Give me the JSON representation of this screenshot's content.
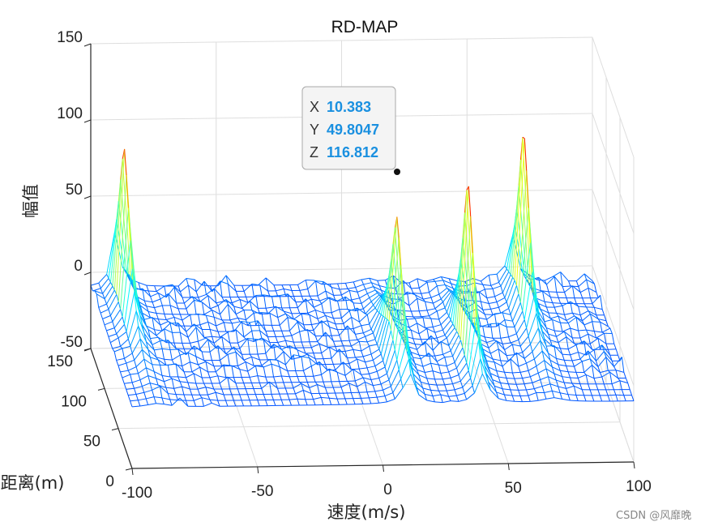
{
  "chart_data": {
    "type": "surface",
    "title": "RD-MAP",
    "xlabel": "速度(m/s)",
    "ylabel": "距离(m)",
    "zlabel": "幅值",
    "xlim": [
      -100,
      100
    ],
    "ylim": [
      0,
      150
    ],
    "zlim": [
      -50,
      150
    ],
    "x_ticks": [
      "-100",
      "-50",
      "0",
      "50",
      "100"
    ],
    "y_ticks": [
      "0",
      "50",
      "100",
      "150"
    ],
    "z_ticks": [
      "-50",
      "0",
      "50",
      "100",
      "150"
    ],
    "grid": true,
    "colormap": "jet",
    "noise_floor_z": -10,
    "peaks": [
      {
        "x": -90,
        "y": 115,
        "z": 115
      },
      {
        "x": 10.383,
        "y": 49.8047,
        "z": 116.812
      },
      {
        "x": 40,
        "y": 52,
        "z": 116
      },
      {
        "x": 68,
        "y": 110,
        "z": 116
      }
    ],
    "datatip": {
      "x_label": "X",
      "x_value": "10.383",
      "y_label": "Y",
      "y_value": "49.8047",
      "z_label": "Z",
      "z_value": "116.812"
    }
  },
  "watermark": "CSDN @风靡晚"
}
